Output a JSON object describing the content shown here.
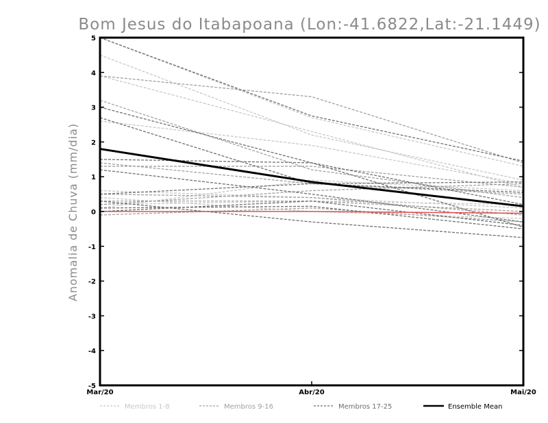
{
  "chart_data": {
    "type": "line",
    "title": "Bom Jesus do Itabapoana (Lon:-41.6822,Lat:-21.1449)",
    "ylabel": "Anomalia de Chuva (mm/dia)",
    "xlabel": "",
    "categories": [
      "Mar/20",
      "Abr/20",
      "Mai/20"
    ],
    "ylim": [
      -5,
      5
    ],
    "yticks": [
      "5",
      "4",
      "3",
      "2",
      "1",
      "0",
      "-1",
      "-2",
      "-3",
      "-4",
      "-5"
    ],
    "grid": false,
    "legend_position": "bottom",
    "zero_line_color": "#e05050",
    "series_groups": [
      {
        "name": "Membros 1-8",
        "color": "#c8c8c8",
        "dashed": true,
        "series": [
          [
            5.0,
            2.7,
            1.3
          ],
          [
            4.5,
            2.2,
            0.9
          ],
          [
            2.6,
            1.9,
            0.8
          ],
          [
            0.6,
            0.4,
            0.1
          ],
          [
            0.1,
            0.9,
            0.6
          ],
          [
            0.4,
            0.0,
            -0.2
          ],
          [
            3.9,
            2.3,
            0.7
          ],
          [
            0.2,
            0.3,
            0.2
          ]
        ]
      },
      {
        "name": "Membros 9-16",
        "color": "#a0a0a0",
        "dashed": true,
        "series": [
          [
            3.9,
            3.3,
            1.4
          ],
          [
            3.2,
            1.2,
            0.4
          ],
          [
            1.3,
            1.3,
            0.7
          ],
          [
            0.5,
            0.4,
            -0.1
          ],
          [
            0.2,
            0.6,
            0.8
          ],
          [
            -0.1,
            0.1,
            -0.3
          ],
          [
            1.4,
            0.8,
            0.5
          ],
          [
            0.3,
            0.3,
            0.0
          ]
        ]
      },
      {
        "name": "Membros 17-25",
        "color": "#6e6e6e",
        "dashed": true,
        "series": [
          [
            5.0,
            2.75,
            1.45
          ],
          [
            3.0,
            1.4,
            -0.45
          ],
          [
            2.7,
            0.8,
            0.55
          ],
          [
            1.5,
            1.4,
            0.2
          ],
          [
            1.2,
            0.5,
            -0.3
          ],
          [
            0.5,
            0.8,
            0.85
          ],
          [
            0.3,
            -0.3,
            -0.75
          ],
          [
            0.0,
            0.3,
            -0.4
          ],
          [
            0.1,
            0.15,
            -0.5
          ]
        ]
      }
    ],
    "ensemble_mean": {
      "name": "Ensemble Mean",
      "color": "#000000",
      "values": [
        1.8,
        0.85,
        0.15
      ]
    },
    "zero_line": [
      0.0,
      0.0,
      -0.05
    ]
  }
}
